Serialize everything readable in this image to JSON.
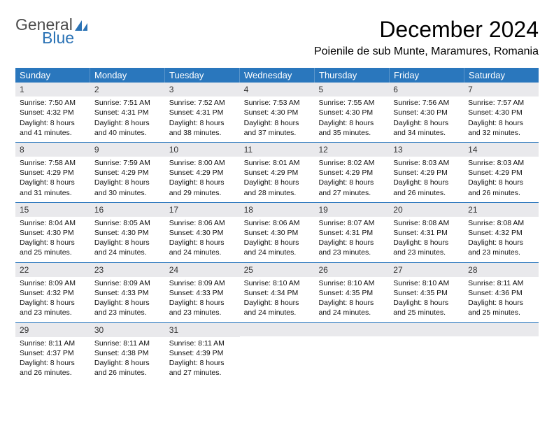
{
  "logo": {
    "word1": "General",
    "word2": "Blue"
  },
  "title": "December 2024",
  "location": "Poienile de sub Munte, Maramures, Romania",
  "colors": {
    "header_bg": "#2a77bd",
    "header_text": "#ffffff",
    "daynum_bg": "#e9e9ec",
    "row_border": "#2a77bd",
    "logo_gray": "#4b4b4b",
    "logo_blue": "#2a72b5"
  },
  "days_of_week": [
    "Sunday",
    "Monday",
    "Tuesday",
    "Wednesday",
    "Thursday",
    "Friday",
    "Saturday"
  ],
  "weeks": [
    [
      {
        "n": "1",
        "sr": "Sunrise: 7:50 AM",
        "ss": "Sunset: 4:32 PM",
        "d1": "Daylight: 8 hours",
        "d2": "and 41 minutes."
      },
      {
        "n": "2",
        "sr": "Sunrise: 7:51 AM",
        "ss": "Sunset: 4:31 PM",
        "d1": "Daylight: 8 hours",
        "d2": "and 40 minutes."
      },
      {
        "n": "3",
        "sr": "Sunrise: 7:52 AM",
        "ss": "Sunset: 4:31 PM",
        "d1": "Daylight: 8 hours",
        "d2": "and 38 minutes."
      },
      {
        "n": "4",
        "sr": "Sunrise: 7:53 AM",
        "ss": "Sunset: 4:30 PM",
        "d1": "Daylight: 8 hours",
        "d2": "and 37 minutes."
      },
      {
        "n": "5",
        "sr": "Sunrise: 7:55 AM",
        "ss": "Sunset: 4:30 PM",
        "d1": "Daylight: 8 hours",
        "d2": "and 35 minutes."
      },
      {
        "n": "6",
        "sr": "Sunrise: 7:56 AM",
        "ss": "Sunset: 4:30 PM",
        "d1": "Daylight: 8 hours",
        "d2": "and 34 minutes."
      },
      {
        "n": "7",
        "sr": "Sunrise: 7:57 AM",
        "ss": "Sunset: 4:30 PM",
        "d1": "Daylight: 8 hours",
        "d2": "and 32 minutes."
      }
    ],
    [
      {
        "n": "8",
        "sr": "Sunrise: 7:58 AM",
        "ss": "Sunset: 4:29 PM",
        "d1": "Daylight: 8 hours",
        "d2": "and 31 minutes."
      },
      {
        "n": "9",
        "sr": "Sunrise: 7:59 AM",
        "ss": "Sunset: 4:29 PM",
        "d1": "Daylight: 8 hours",
        "d2": "and 30 minutes."
      },
      {
        "n": "10",
        "sr": "Sunrise: 8:00 AM",
        "ss": "Sunset: 4:29 PM",
        "d1": "Daylight: 8 hours",
        "d2": "and 29 minutes."
      },
      {
        "n": "11",
        "sr": "Sunrise: 8:01 AM",
        "ss": "Sunset: 4:29 PM",
        "d1": "Daylight: 8 hours",
        "d2": "and 28 minutes."
      },
      {
        "n": "12",
        "sr": "Sunrise: 8:02 AM",
        "ss": "Sunset: 4:29 PM",
        "d1": "Daylight: 8 hours",
        "d2": "and 27 minutes."
      },
      {
        "n": "13",
        "sr": "Sunrise: 8:03 AM",
        "ss": "Sunset: 4:29 PM",
        "d1": "Daylight: 8 hours",
        "d2": "and 26 minutes."
      },
      {
        "n": "14",
        "sr": "Sunrise: 8:03 AM",
        "ss": "Sunset: 4:29 PM",
        "d1": "Daylight: 8 hours",
        "d2": "and 26 minutes."
      }
    ],
    [
      {
        "n": "15",
        "sr": "Sunrise: 8:04 AM",
        "ss": "Sunset: 4:30 PM",
        "d1": "Daylight: 8 hours",
        "d2": "and 25 minutes."
      },
      {
        "n": "16",
        "sr": "Sunrise: 8:05 AM",
        "ss": "Sunset: 4:30 PM",
        "d1": "Daylight: 8 hours",
        "d2": "and 24 minutes."
      },
      {
        "n": "17",
        "sr": "Sunrise: 8:06 AM",
        "ss": "Sunset: 4:30 PM",
        "d1": "Daylight: 8 hours",
        "d2": "and 24 minutes."
      },
      {
        "n": "18",
        "sr": "Sunrise: 8:06 AM",
        "ss": "Sunset: 4:30 PM",
        "d1": "Daylight: 8 hours",
        "d2": "and 24 minutes."
      },
      {
        "n": "19",
        "sr": "Sunrise: 8:07 AM",
        "ss": "Sunset: 4:31 PM",
        "d1": "Daylight: 8 hours",
        "d2": "and 23 minutes."
      },
      {
        "n": "20",
        "sr": "Sunrise: 8:08 AM",
        "ss": "Sunset: 4:31 PM",
        "d1": "Daylight: 8 hours",
        "d2": "and 23 minutes."
      },
      {
        "n": "21",
        "sr": "Sunrise: 8:08 AM",
        "ss": "Sunset: 4:32 PM",
        "d1": "Daylight: 8 hours",
        "d2": "and 23 minutes."
      }
    ],
    [
      {
        "n": "22",
        "sr": "Sunrise: 8:09 AM",
        "ss": "Sunset: 4:32 PM",
        "d1": "Daylight: 8 hours",
        "d2": "and 23 minutes."
      },
      {
        "n": "23",
        "sr": "Sunrise: 8:09 AM",
        "ss": "Sunset: 4:33 PM",
        "d1": "Daylight: 8 hours",
        "d2": "and 23 minutes."
      },
      {
        "n": "24",
        "sr": "Sunrise: 8:09 AM",
        "ss": "Sunset: 4:33 PM",
        "d1": "Daylight: 8 hours",
        "d2": "and 23 minutes."
      },
      {
        "n": "25",
        "sr": "Sunrise: 8:10 AM",
        "ss": "Sunset: 4:34 PM",
        "d1": "Daylight: 8 hours",
        "d2": "and 24 minutes."
      },
      {
        "n": "26",
        "sr": "Sunrise: 8:10 AM",
        "ss": "Sunset: 4:35 PM",
        "d1": "Daylight: 8 hours",
        "d2": "and 24 minutes."
      },
      {
        "n": "27",
        "sr": "Sunrise: 8:10 AM",
        "ss": "Sunset: 4:35 PM",
        "d1": "Daylight: 8 hours",
        "d2": "and 25 minutes."
      },
      {
        "n": "28",
        "sr": "Sunrise: 8:11 AM",
        "ss": "Sunset: 4:36 PM",
        "d1": "Daylight: 8 hours",
        "d2": "and 25 minutes."
      }
    ],
    [
      {
        "n": "29",
        "sr": "Sunrise: 8:11 AM",
        "ss": "Sunset: 4:37 PM",
        "d1": "Daylight: 8 hours",
        "d2": "and 26 minutes."
      },
      {
        "n": "30",
        "sr": "Sunrise: 8:11 AM",
        "ss": "Sunset: 4:38 PM",
        "d1": "Daylight: 8 hours",
        "d2": "and 26 minutes."
      },
      {
        "n": "31",
        "sr": "Sunrise: 8:11 AM",
        "ss": "Sunset: 4:39 PM",
        "d1": "Daylight: 8 hours",
        "d2": "and 27 minutes."
      },
      null,
      null,
      null,
      null
    ]
  ]
}
